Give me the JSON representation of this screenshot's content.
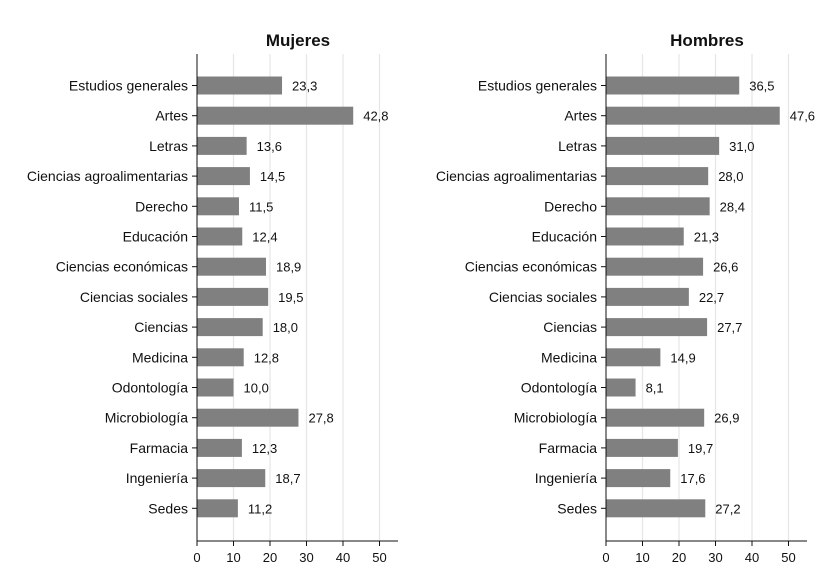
{
  "chart_data": [
    {
      "type": "bar",
      "orientation": "horizontal",
      "title": "Mujeres",
      "xlim": [
        0,
        55
      ],
      "xticks": [
        0,
        10,
        20,
        30,
        40,
        50
      ],
      "grid": true,
      "categories": [
        "Estudios generales",
        "Artes",
        "Letras",
        "Ciencias agroalimentarias",
        "Derecho",
        "Educación",
        "Ciencias económicas",
        "Ciencias sociales",
        "Ciencias",
        "Medicina",
        "Odontología",
        "Microbiología",
        "Farmacia",
        "Ingeniería",
        "Sedes"
      ],
      "values": [
        23.3,
        42.8,
        13.6,
        14.5,
        11.5,
        12.4,
        18.9,
        19.5,
        18.0,
        12.8,
        10.0,
        27.8,
        12.3,
        18.7,
        11.2
      ],
      "value_labels": [
        "23,3",
        "42,8",
        "13,6",
        "14,5",
        "11,5",
        "12,4",
        "18,9",
        "19,5",
        "18,0",
        "12,8",
        "10,0",
        "27,8",
        "12,3",
        "18,7",
        "11,2"
      ],
      "bar_color": "#808080"
    },
    {
      "type": "bar",
      "orientation": "horizontal",
      "title": "Hombres",
      "xlim": [
        0,
        55
      ],
      "xticks": [
        0,
        10,
        20,
        30,
        40,
        50
      ],
      "grid": true,
      "categories": [
        "Estudios generales",
        "Artes",
        "Letras",
        "Ciencias agroalimentarias",
        "Derecho",
        "Educación",
        "Ciencias económicas",
        "Ciencias sociales",
        "Ciencias",
        "Medicina",
        "Odontología",
        "Microbiología",
        "Farmacia",
        "Ingeniería",
        "Sedes"
      ],
      "values": [
        36.5,
        47.6,
        31.0,
        28.0,
        28.4,
        21.3,
        26.6,
        22.7,
        27.7,
        14.9,
        8.1,
        26.9,
        19.7,
        17.6,
        27.2
      ],
      "value_labels": [
        "36,5",
        "47,6",
        "31,0",
        "28,0",
        "28,4",
        "21,3",
        "26,6",
        "22,7",
        "27,7",
        "14,9",
        "8,1",
        "26,9",
        "19,7",
        "17,6",
        "27,2"
      ],
      "bar_color": "#808080"
    }
  ]
}
